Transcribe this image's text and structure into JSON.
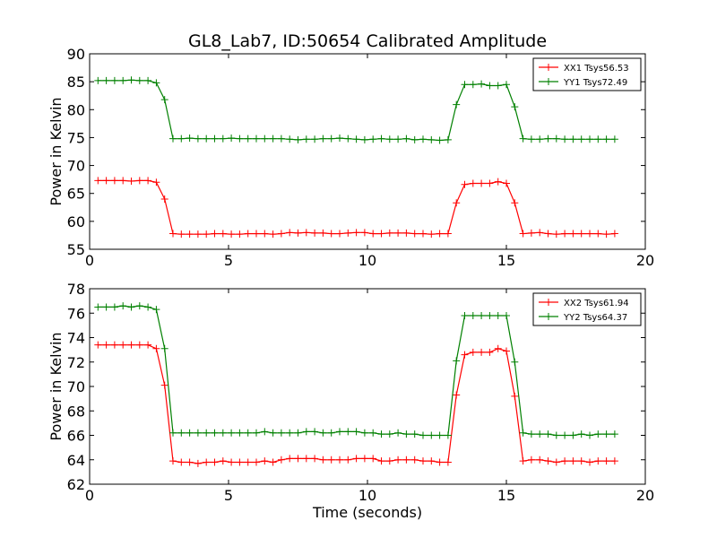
{
  "title": "GL8_Lab7, ID:50654 Calibrated Amplitude",
  "xlabel": "Time (seconds)",
  "colors": {
    "xx": "#ff0000",
    "yy": "#008000"
  },
  "chart_data": [
    {
      "type": "line",
      "title": "GL8_Lab7, ID:50654 Calibrated Amplitude",
      "xlabel": "",
      "ylabel": "Power in Kelvin",
      "xlim": [
        0,
        20
      ],
      "ylim": [
        55,
        90
      ],
      "xticks": [
        0,
        5,
        10,
        15,
        20
      ],
      "yticks": [
        55,
        60,
        65,
        70,
        75,
        80,
        85,
        90
      ],
      "grid": false,
      "legend_position": "top-right",
      "x": [
        0.3,
        0.6,
        0.9,
        1.2,
        1.5,
        1.8,
        2.1,
        2.4,
        2.7,
        3.0,
        3.3,
        3.6,
        3.9,
        4.2,
        4.5,
        4.8,
        5.1,
        5.4,
        5.7,
        6.0,
        6.3,
        6.6,
        6.9,
        7.2,
        7.5,
        7.8,
        8.1,
        8.4,
        8.7,
        9.0,
        9.3,
        9.6,
        9.9,
        10.2,
        10.5,
        10.8,
        11.1,
        11.4,
        11.7,
        12.0,
        12.3,
        12.6,
        12.9,
        13.2,
        13.5,
        13.8,
        14.1,
        14.4,
        14.7,
        15.0,
        15.3,
        15.6,
        15.9,
        16.2,
        16.5,
        16.8,
        17.1,
        17.4,
        17.7,
        18.0,
        18.3,
        18.6,
        18.9
      ],
      "series": [
        {
          "name": "XX1 Tsys56.53",
          "color": "#ff0000",
          "values": [
            67.3,
            67.3,
            67.3,
            67.3,
            67.2,
            67.3,
            67.3,
            67.0,
            64.0,
            57.8,
            57.7,
            57.7,
            57.7,
            57.7,
            57.8,
            57.8,
            57.7,
            57.7,
            57.8,
            57.8,
            57.8,
            57.7,
            57.8,
            58.0,
            57.9,
            58.0,
            57.9,
            57.9,
            57.8,
            57.8,
            57.9,
            58.0,
            58.0,
            57.8,
            57.8,
            57.9,
            57.9,
            57.9,
            57.8,
            57.8,
            57.7,
            57.8,
            57.8,
            63.3,
            66.6,
            66.8,
            66.8,
            66.8,
            67.1,
            66.8,
            63.3,
            57.8,
            57.9,
            58.0,
            57.8,
            57.7,
            57.8,
            57.8,
            57.8,
            57.8,
            57.8,
            57.7,
            57.8
          ]
        },
        {
          "name": "YY1 Tsys72.49",
          "color": "#008000",
          "values": [
            85.2,
            85.2,
            85.2,
            85.2,
            85.3,
            85.2,
            85.2,
            84.8,
            81.8,
            74.8,
            74.8,
            74.9,
            74.8,
            74.8,
            74.8,
            74.8,
            74.9,
            74.8,
            74.8,
            74.8,
            74.8,
            74.8,
            74.8,
            74.7,
            74.6,
            74.7,
            74.7,
            74.8,
            74.8,
            74.9,
            74.8,
            74.7,
            74.6,
            74.7,
            74.8,
            74.7,
            74.7,
            74.8,
            74.6,
            74.7,
            74.6,
            74.5,
            74.6,
            80.9,
            84.5,
            84.5,
            84.6,
            84.3,
            84.3,
            84.5,
            80.5,
            74.8,
            74.7,
            74.7,
            74.8,
            74.8,
            74.7,
            74.7,
            74.7,
            74.7,
            74.7,
            74.7,
            74.7
          ]
        }
      ]
    },
    {
      "type": "line",
      "title": "",
      "xlabel": "Time (seconds)",
      "ylabel": "Power in Kelvin",
      "xlim": [
        0,
        20
      ],
      "ylim": [
        62,
        78
      ],
      "xticks": [
        0,
        5,
        10,
        15,
        20
      ],
      "yticks": [
        62,
        64,
        66,
        68,
        70,
        72,
        74,
        76,
        78
      ],
      "grid": false,
      "legend_position": "top-right",
      "x": [
        0.3,
        0.6,
        0.9,
        1.2,
        1.5,
        1.8,
        2.1,
        2.4,
        2.7,
        3.0,
        3.3,
        3.6,
        3.9,
        4.2,
        4.5,
        4.8,
        5.1,
        5.4,
        5.7,
        6.0,
        6.3,
        6.6,
        6.9,
        7.2,
        7.5,
        7.8,
        8.1,
        8.4,
        8.7,
        9.0,
        9.3,
        9.6,
        9.9,
        10.2,
        10.5,
        10.8,
        11.1,
        11.4,
        11.7,
        12.0,
        12.3,
        12.6,
        12.9,
        13.2,
        13.5,
        13.8,
        14.1,
        14.4,
        14.7,
        15.0,
        15.3,
        15.6,
        15.9,
        16.2,
        16.5,
        16.8,
        17.1,
        17.4,
        17.7,
        18.0,
        18.3,
        18.6,
        18.9
      ],
      "series": [
        {
          "name": "XX2 Tsys61.94",
          "color": "#ff0000",
          "values": [
            73.4,
            73.4,
            73.4,
            73.4,
            73.4,
            73.4,
            73.4,
            73.1,
            70.1,
            63.9,
            63.8,
            63.8,
            63.7,
            63.8,
            63.8,
            63.9,
            63.8,
            63.8,
            63.8,
            63.8,
            63.9,
            63.8,
            64.0,
            64.1,
            64.1,
            64.1,
            64.1,
            64.0,
            64.0,
            64.0,
            64.0,
            64.1,
            64.1,
            64.1,
            63.9,
            63.9,
            64.0,
            64.0,
            64.0,
            63.9,
            63.9,
            63.8,
            63.8,
            69.3,
            72.6,
            72.8,
            72.8,
            72.8,
            73.1,
            72.9,
            69.2,
            63.9,
            64.0,
            64.0,
            63.9,
            63.8,
            63.9,
            63.9,
            63.9,
            63.8,
            63.9,
            63.9,
            63.9
          ]
        },
        {
          "name": "YY2 Tsys64.37",
          "color": "#008000",
          "values": [
            76.5,
            76.5,
            76.5,
            76.6,
            76.5,
            76.6,
            76.5,
            76.3,
            73.1,
            66.2,
            66.2,
            66.2,
            66.2,
            66.2,
            66.2,
            66.2,
            66.2,
            66.2,
            66.2,
            66.2,
            66.3,
            66.2,
            66.2,
            66.2,
            66.2,
            66.3,
            66.3,
            66.2,
            66.2,
            66.3,
            66.3,
            66.3,
            66.2,
            66.2,
            66.1,
            66.1,
            66.2,
            66.1,
            66.1,
            66.0,
            66.0,
            66.0,
            66.0,
            72.1,
            75.8,
            75.8,
            75.8,
            75.8,
            75.8,
            75.8,
            72.0,
            66.2,
            66.1,
            66.1,
            66.1,
            66.0,
            66.0,
            66.0,
            66.1,
            66.0,
            66.1,
            66.1,
            66.1
          ]
        }
      ]
    }
  ]
}
